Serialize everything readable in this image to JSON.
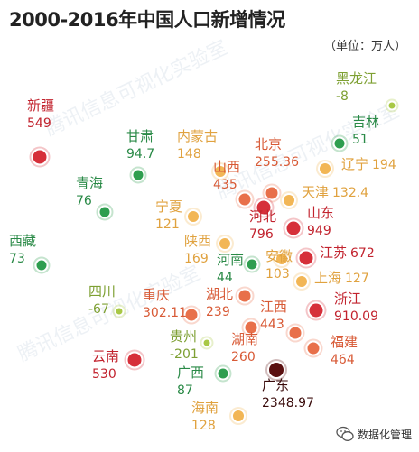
{
  "title": "2000-2016年中国人口新增情况",
  "unit": "（单位：万人）",
  "watermark": "微信号：数据化管理",
  "watermark_text": "数据化管理",
  "background_watermarks": [
    "腾讯信息可视化实验室",
    "腾讯信息可视化实验室",
    "腾讯信息可视化实验室"
  ],
  "colors": {
    "dark_red": "#5a1010",
    "red": "#d6303a",
    "orange": "#e8704a",
    "yellow": "#f2b655",
    "light_green": "#a8c845",
    "green": "#2e9e4f"
  },
  "chart_data": {
    "type": "scatter",
    "title": "2000-2016年中国人口新增情况",
    "value_unit": "万人",
    "points": [
      {
        "name": "新疆",
        "value": "549",
        "color": "#d6303a"
      },
      {
        "name": "黑龙江",
        "value": "-8",
        "color": "#a8c845"
      },
      {
        "name": "吉林",
        "value": "51",
        "color": "#2e9e4f"
      },
      {
        "name": "甘肃",
        "value": "94.7",
        "color": "#2e9e4f"
      },
      {
        "name": "内蒙古",
        "value": "148",
        "color": "#f2b655"
      },
      {
        "name": "北京",
        "value": "255.36",
        "color": "#e8704a"
      },
      {
        "name": "辽宁",
        "value": "194",
        "color": "#f2b655"
      },
      {
        "name": "青海",
        "value": "76",
        "color": "#2e9e4f"
      },
      {
        "name": "山西",
        "value": "435",
        "color": "#e8704a"
      },
      {
        "name": "天津",
        "value": "132.4",
        "color": "#f2b655"
      },
      {
        "name": "宁夏",
        "value": "121",
        "color": "#f2b655"
      },
      {
        "name": "河北",
        "value": "796",
        "color": "#d6303a"
      },
      {
        "name": "山东",
        "value": "949",
        "color": "#d6303a"
      },
      {
        "name": "西藏",
        "value": "73",
        "color": "#2e9e4f"
      },
      {
        "name": "陕西",
        "value": "169",
        "color": "#f2b655"
      },
      {
        "name": "河南",
        "value": "44",
        "color": "#2e9e4f"
      },
      {
        "name": "安徽",
        "value": "103",
        "color": "#f2b655"
      },
      {
        "name": "江苏",
        "value": "672",
        "color": "#d6303a"
      },
      {
        "name": "上海",
        "value": "127",
        "color": "#f2b655"
      },
      {
        "name": "四川",
        "value": "-67",
        "color": "#a8c845"
      },
      {
        "name": "重庆",
        "value": "302.11",
        "color": "#e8704a"
      },
      {
        "name": "湖北",
        "value": "239",
        "color": "#e8704a"
      },
      {
        "name": "浙江",
        "value": "910.09",
        "color": "#d6303a"
      },
      {
        "name": "江西",
        "value": "443",
        "color": "#e8704a"
      },
      {
        "name": "贵州",
        "value": "-201",
        "color": "#a8c845"
      },
      {
        "name": "湖南",
        "value": "260",
        "color": "#e8704a"
      },
      {
        "name": "福建",
        "value": "464",
        "color": "#e8704a"
      },
      {
        "name": "云南",
        "value": "530",
        "color": "#d6303a"
      },
      {
        "name": "广西",
        "value": "87",
        "color": "#2e9e4f"
      },
      {
        "name": "广东",
        "value": "2348.97",
        "color": "#5a1010"
      },
      {
        "name": "海南",
        "value": "128",
        "color": "#f2b655"
      }
    ]
  }
}
